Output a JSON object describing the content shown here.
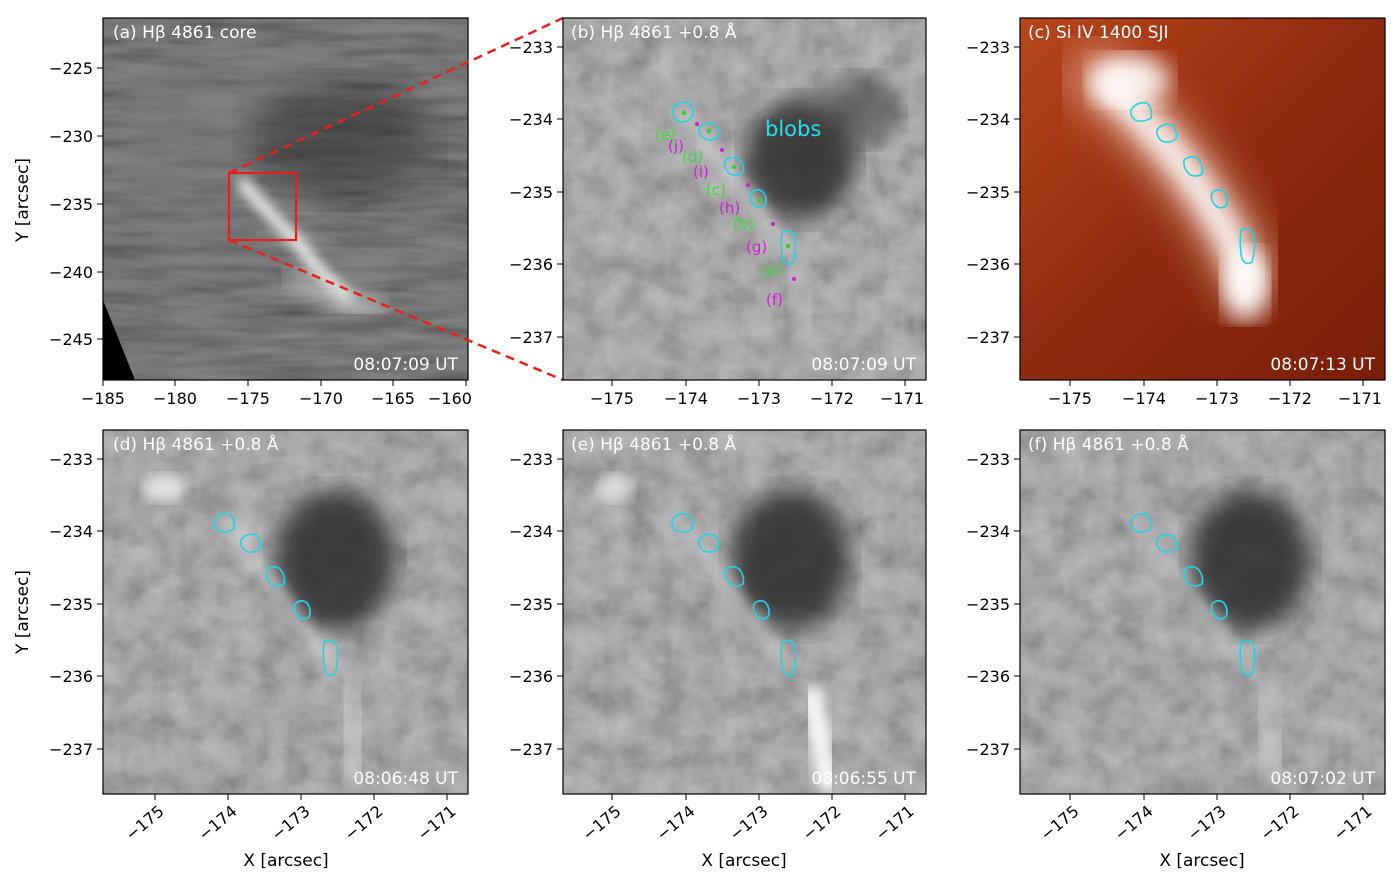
{
  "figure": {
    "panels": [
      {
        "id": "a",
        "title": "(a) Hβ 4861 core",
        "time": "08:07:09 UT",
        "xticks": [
          "−185",
          "−180",
          "−175",
          "−170",
          "−165",
          "−160"
        ],
        "yticks": [
          "−225",
          "−230",
          "−235",
          "−240",
          "−245"
        ],
        "ylabel": "Y [arcsec]",
        "xlabel": ""
      },
      {
        "id": "b",
        "title": "(b) Hβ 4861 +0.8 Å",
        "time": "08:07:09 UT",
        "xticks": [
          "−175",
          "−174",
          "−173",
          "−172",
          "−171"
        ],
        "yticks": [
          "−233",
          "−234",
          "−235",
          "−236",
          "−237"
        ],
        "ylabel": "",
        "xlabel": "",
        "annotation": "blobs"
      },
      {
        "id": "c",
        "title": "(c) Si IV 1400 SJI",
        "time": "08:07:13 UT",
        "xticks": [
          "−175",
          "−174",
          "−173",
          "−172",
          "−171"
        ],
        "yticks": [
          "−233",
          "−234",
          "−235",
          "−236",
          "−237"
        ],
        "ylabel": "",
        "xlabel": ""
      },
      {
        "id": "d",
        "title": "(d) Hβ 4861 +0.8 Å",
        "time": "08:06:48 UT",
        "xticks": [
          "−175",
          "−174",
          "−173",
          "−172",
          "−171"
        ],
        "yticks": [
          "−233",
          "−234",
          "−235",
          "−236",
          "−237"
        ],
        "ylabel": "Y [arcsec]",
        "xlabel": "X [arcsec]"
      },
      {
        "id": "e",
        "title": "(e) Hβ 4861 +0.8 Å",
        "time": "08:06:55 UT",
        "xticks": [
          "−175",
          "−174",
          "−173",
          "−172",
          "−171"
        ],
        "yticks": [
          "−233",
          "−234",
          "−235",
          "−236",
          "−237"
        ],
        "ylabel": "",
        "xlabel": "X [arcsec]"
      },
      {
        "id": "f",
        "title": "(f) Hβ 4861 +0.8 Å",
        "time": "08:07:02 UT",
        "xticks": [
          "−175",
          "−174",
          "−173",
          "−172",
          "−171"
        ],
        "yticks": [
          "−233",
          "−234",
          "−235",
          "−236",
          "−237"
        ],
        "ylabel": "",
        "xlabel": "X [arcsec]"
      }
    ],
    "blob_labels_green": [
      "(e)",
      "(d)",
      "(c)",
      "(b)",
      "(a)"
    ],
    "blob_labels_magenta": [
      "(j)",
      "(i)",
      "(h)",
      "(g)",
      "(f)"
    ],
    "colors": {
      "contour": "#22d3e6",
      "zoom_box": "#e8201c",
      "green_label": "#3ddc3d",
      "magenta_label": "#d020d0",
      "annotation": "#22e0ee"
    }
  }
}
